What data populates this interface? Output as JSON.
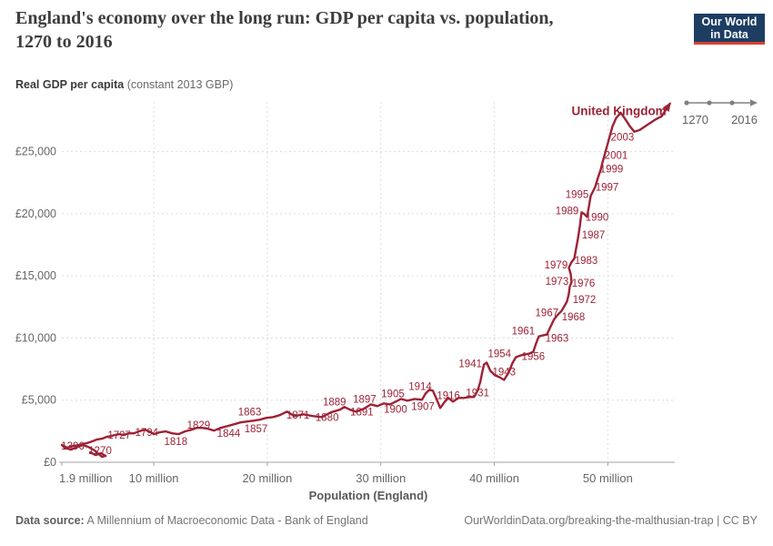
{
  "header": {
    "title_lines": [
      "England's economy over the long run: GDP per capita vs. population,",
      "1270 to 2016"
    ],
    "subtitle_bold": "Real GDP per capita",
    "subtitle_rest": " (constant 2013 GBP)",
    "logo": {
      "line1": "Our World",
      "line2": "in Data"
    }
  },
  "timeline": {
    "start_label": "1270",
    "end_label": "2016"
  },
  "footer": {
    "source_label": "Data source:",
    "source_text": " A Millennium of Macroeconomic Data - Bank of England",
    "link_text": "OurWorldinData.org/breaking-the-malthusian-trap | CC BY"
  },
  "chart_data": {
    "type": "line",
    "variant": "connected-scatter",
    "title": "England's economy over the long run: GDP per capita vs. population, 1270 to 2016",
    "xlabel": "Population (England)",
    "ylabel": "Real GDP per capita (constant 2013 GBP)",
    "entity": "United Kingdom",
    "xlim": [
      1.9,
      55.9
    ],
    "ylim": [
      0,
      29000
    ],
    "grid": true,
    "x_ticks": [
      {
        "value": 1.9,
        "label": "1.9 million"
      },
      {
        "value": 10,
        "label": "10 million"
      },
      {
        "value": 20,
        "label": "20 million"
      },
      {
        "value": 30,
        "label": "30 million"
      },
      {
        "value": 40,
        "label": "40 million"
      },
      {
        "value": 50,
        "label": "50 million"
      }
    ],
    "y_ticks": [
      {
        "value": 0,
        "label": "£0"
      },
      {
        "value": 5000,
        "label": "£5,000"
      },
      {
        "value": 10000,
        "label": "£10,000"
      },
      {
        "value": 15000,
        "label": "£15,000"
      },
      {
        "value": 20000,
        "label": "£20,000"
      },
      {
        "value": 25000,
        "label": "£25,000"
      }
    ],
    "colors": {
      "line": "#9d2235",
      "grid": "#dcdcdc",
      "axis": "#a3a3a3",
      "tick_text": "#666666",
      "axis_title": "#5a5a5a",
      "logo_navy": "#1d3d63",
      "logo_red": "#d8402f",
      "timeline_gray": "#808080"
    },
    "series": [
      {
        "name": "United Kingdom",
        "points": [
          [
            4.39,
            800
          ],
          [
            4.87,
            580
          ],
          [
            5.35,
            730
          ],
          [
            5.76,
            510
          ],
          [
            5.43,
            440
          ],
          [
            4.79,
            950
          ],
          [
            4.23,
            1240
          ],
          [
            3.75,
            1390
          ],
          [
            3.27,
            1240
          ],
          [
            2.7,
            1020
          ],
          [
            2.14,
            1170
          ],
          [
            1.9,
            1390
          ],
          [
            2.38,
            1170
          ],
          [
            2.86,
            1310
          ],
          [
            3.43,
            1390
          ],
          [
            4.07,
            1530
          ],
          [
            4.55,
            1680
          ],
          [
            4.95,
            1820
          ],
          [
            5.43,
            1900
          ],
          [
            5.84,
            2040
          ],
          [
            6.24,
            2110
          ],
          [
            6.56,
            2190
          ],
          [
            6.96,
            2260
          ],
          [
            7.36,
            2190
          ],
          [
            7.76,
            2330
          ],
          [
            8.25,
            2330
          ],
          [
            8.65,
            2480
          ],
          [
            9.21,
            2620
          ],
          [
            9.61,
            2480
          ],
          [
            10.01,
            2260
          ],
          [
            10.49,
            2410
          ],
          [
            11.06,
            2480
          ],
          [
            11.62,
            2330
          ],
          [
            12.18,
            2260
          ],
          [
            12.74,
            2480
          ],
          [
            13.31,
            2620
          ],
          [
            13.79,
            2770
          ],
          [
            14.27,
            2770
          ],
          [
            14.75,
            2700
          ],
          [
            15.31,
            2550
          ],
          [
            15.88,
            2770
          ],
          [
            16.52,
            2920
          ],
          [
            17.08,
            3060
          ],
          [
            17.64,
            3210
          ],
          [
            18.21,
            3280
          ],
          [
            18.77,
            3350
          ],
          [
            19.33,
            3430
          ],
          [
            19.89,
            3570
          ],
          [
            20.53,
            3640
          ],
          [
            21.1,
            3790
          ],
          [
            21.74,
            4080
          ],
          [
            22.38,
            3720
          ],
          [
            23.18,
            3860
          ],
          [
            23.99,
            3720
          ],
          [
            24.79,
            3640
          ],
          [
            25.59,
            4010
          ],
          [
            26.4,
            4230
          ],
          [
            26.8,
            4450
          ],
          [
            27.28,
            4230
          ],
          [
            27.76,
            4080
          ],
          [
            28.49,
            4300
          ],
          [
            29.13,
            4660
          ],
          [
            29.69,
            4520
          ],
          [
            30.25,
            4740
          ],
          [
            30.81,
            4660
          ],
          [
            31.3,
            4880
          ],
          [
            31.78,
            5100
          ],
          [
            32.34,
            4960
          ],
          [
            32.99,
            5100
          ],
          [
            33.63,
            5030
          ],
          [
            33.95,
            5540
          ],
          [
            34.27,
            5830
          ],
          [
            34.59,
            5760
          ],
          [
            34.91,
            5100
          ],
          [
            35.24,
            4370
          ],
          [
            35.64,
            4880
          ],
          [
            35.96,
            5180
          ],
          [
            36.36,
            4880
          ],
          [
            36.84,
            5180
          ],
          [
            37.33,
            5180
          ],
          [
            37.81,
            5250
          ],
          [
            38.21,
            5250
          ],
          [
            38.53,
            5760
          ],
          [
            38.77,
            6490
          ],
          [
            38.93,
            7220
          ],
          [
            39.09,
            7870
          ],
          [
            39.33,
            8020
          ],
          [
            39.65,
            7360
          ],
          [
            40.05,
            7000
          ],
          [
            40.45,
            6850
          ],
          [
            40.86,
            6630
          ],
          [
            41.26,
            7220
          ],
          [
            41.58,
            7950
          ],
          [
            41.9,
            8460
          ],
          [
            42.31,
            8600
          ],
          [
            42.71,
            8670
          ],
          [
            43.11,
            8750
          ],
          [
            43.43,
            8890
          ],
          [
            43.67,
            9550
          ],
          [
            43.92,
            10130
          ],
          [
            44.24,
            10200
          ],
          [
            44.63,
            10280
          ],
          [
            44.96,
            10930
          ],
          [
            45.28,
            11520
          ],
          [
            45.6,
            11880
          ],
          [
            45.92,
            12170
          ],
          [
            46.16,
            12540
          ],
          [
            46.41,
            12970
          ],
          [
            46.57,
            13560
          ],
          [
            46.65,
            14140
          ],
          [
            46.81,
            14500
          ],
          [
            46.73,
            15160
          ],
          [
            46.57,
            15670
          ],
          [
            46.81,
            16110
          ],
          [
            47.05,
            16400
          ],
          [
            47.21,
            17200
          ],
          [
            47.37,
            18000
          ],
          [
            47.53,
            18950
          ],
          [
            47.69,
            20120
          ],
          [
            47.93,
            19970
          ],
          [
            48.17,
            19750
          ],
          [
            48.33,
            20550
          ],
          [
            48.49,
            21430
          ],
          [
            48.73,
            21870
          ],
          [
            48.89,
            22160
          ],
          [
            49.13,
            22890
          ],
          [
            49.37,
            23540
          ],
          [
            49.53,
            24130
          ],
          [
            49.69,
            24640
          ],
          [
            49.93,
            25440
          ],
          [
            50.17,
            26240
          ],
          [
            50.41,
            27040
          ],
          [
            50.73,
            27700
          ],
          [
            51.13,
            28130
          ],
          [
            51.53,
            27620
          ],
          [
            51.94,
            27040
          ],
          [
            52.34,
            26600
          ],
          [
            52.82,
            26750
          ],
          [
            53.3,
            27040
          ],
          [
            53.78,
            27330
          ],
          [
            54.27,
            27620
          ],
          [
            54.75,
            27840
          ],
          [
            55.15,
            28420
          ],
          [
            55.47,
            28860
          ]
        ]
      }
    ],
    "point_labels": [
      {
        "text": "1396",
        "x": 2.86,
        "y": 1310
      },
      {
        "text": "1270",
        "x": 5.27,
        "y": 950
      },
      {
        "text": "1727",
        "x": 6.96,
        "y": 2190
      },
      {
        "text": "1794",
        "x": 9.37,
        "y": 2410
      },
      {
        "text": "1818",
        "x": 11.94,
        "y": 1680
      },
      {
        "text": "1829",
        "x": 13.95,
        "y": 2990
      },
      {
        "text": "1844",
        "x": 16.6,
        "y": 2330
      },
      {
        "text": "1857",
        "x": 19.01,
        "y": 2700
      },
      {
        "text": "1863",
        "x": 18.45,
        "y": 4080
      },
      {
        "text": "1871",
        "x": 22.7,
        "y": 3790
      },
      {
        "text": "1880",
        "x": 25.27,
        "y": 3640
      },
      {
        "text": "1889",
        "x": 25.92,
        "y": 4880
      },
      {
        "text": "1891",
        "x": 28.33,
        "y": 4080
      },
      {
        "text": "1897",
        "x": 28.57,
        "y": 5100
      },
      {
        "text": "1900",
        "x": 31.3,
        "y": 4300
      },
      {
        "text": "1905",
        "x": 31.06,
        "y": 5540
      },
      {
        "text": "1907",
        "x": 33.71,
        "y": 4520
      },
      {
        "text": "1914",
        "x": 33.47,
        "y": 6120
      },
      {
        "text": "1916",
        "x": 35.96,
        "y": 5390
      },
      {
        "text": "1931",
        "x": 38.53,
        "y": 5610
      },
      {
        "text": "1941",
        "x": 37.89,
        "y": 7940
      },
      {
        "text": "1943",
        "x": 40.86,
        "y": 7290
      },
      {
        "text": "1954",
        "x": 40.46,
        "y": 8750
      },
      {
        "text": "1956",
        "x": 43.43,
        "y": 8530
      },
      {
        "text": "1961",
        "x": 42.55,
        "y": 10570
      },
      {
        "text": "1963",
        "x": 45.52,
        "y": 9990
      },
      {
        "text": "1967",
        "x": 44.63,
        "y": 12030
      },
      {
        "text": "1968",
        "x": 46.97,
        "y": 11730
      },
      {
        "text": "1972",
        "x": 47.93,
        "y": 13120
      },
      {
        "text": "1973",
        "x": 45.52,
        "y": 14580
      },
      {
        "text": "1976",
        "x": 47.85,
        "y": 14430
      },
      {
        "text": "1979",
        "x": 45.44,
        "y": 15890
      },
      {
        "text": "1983",
        "x": 48.09,
        "y": 16250
      },
      {
        "text": "1987",
        "x": 48.73,
        "y": 18300
      },
      {
        "text": "1989",
        "x": 46.41,
        "y": 20260
      },
      {
        "text": "1990",
        "x": 49.05,
        "y": 19750
      },
      {
        "text": "1995",
        "x": 47.29,
        "y": 21570
      },
      {
        "text": "1997",
        "x": 49.93,
        "y": 22160
      },
      {
        "text": "1999",
        "x": 50.33,
        "y": 23620
      },
      {
        "text": "2001",
        "x": 50.73,
        "y": 24710
      },
      {
        "text": "2003",
        "x": 51.29,
        "y": 26170
      }
    ],
    "entity_label": {
      "text": "United Kingdom",
      "x": 50.98,
      "y": 28280
    }
  }
}
